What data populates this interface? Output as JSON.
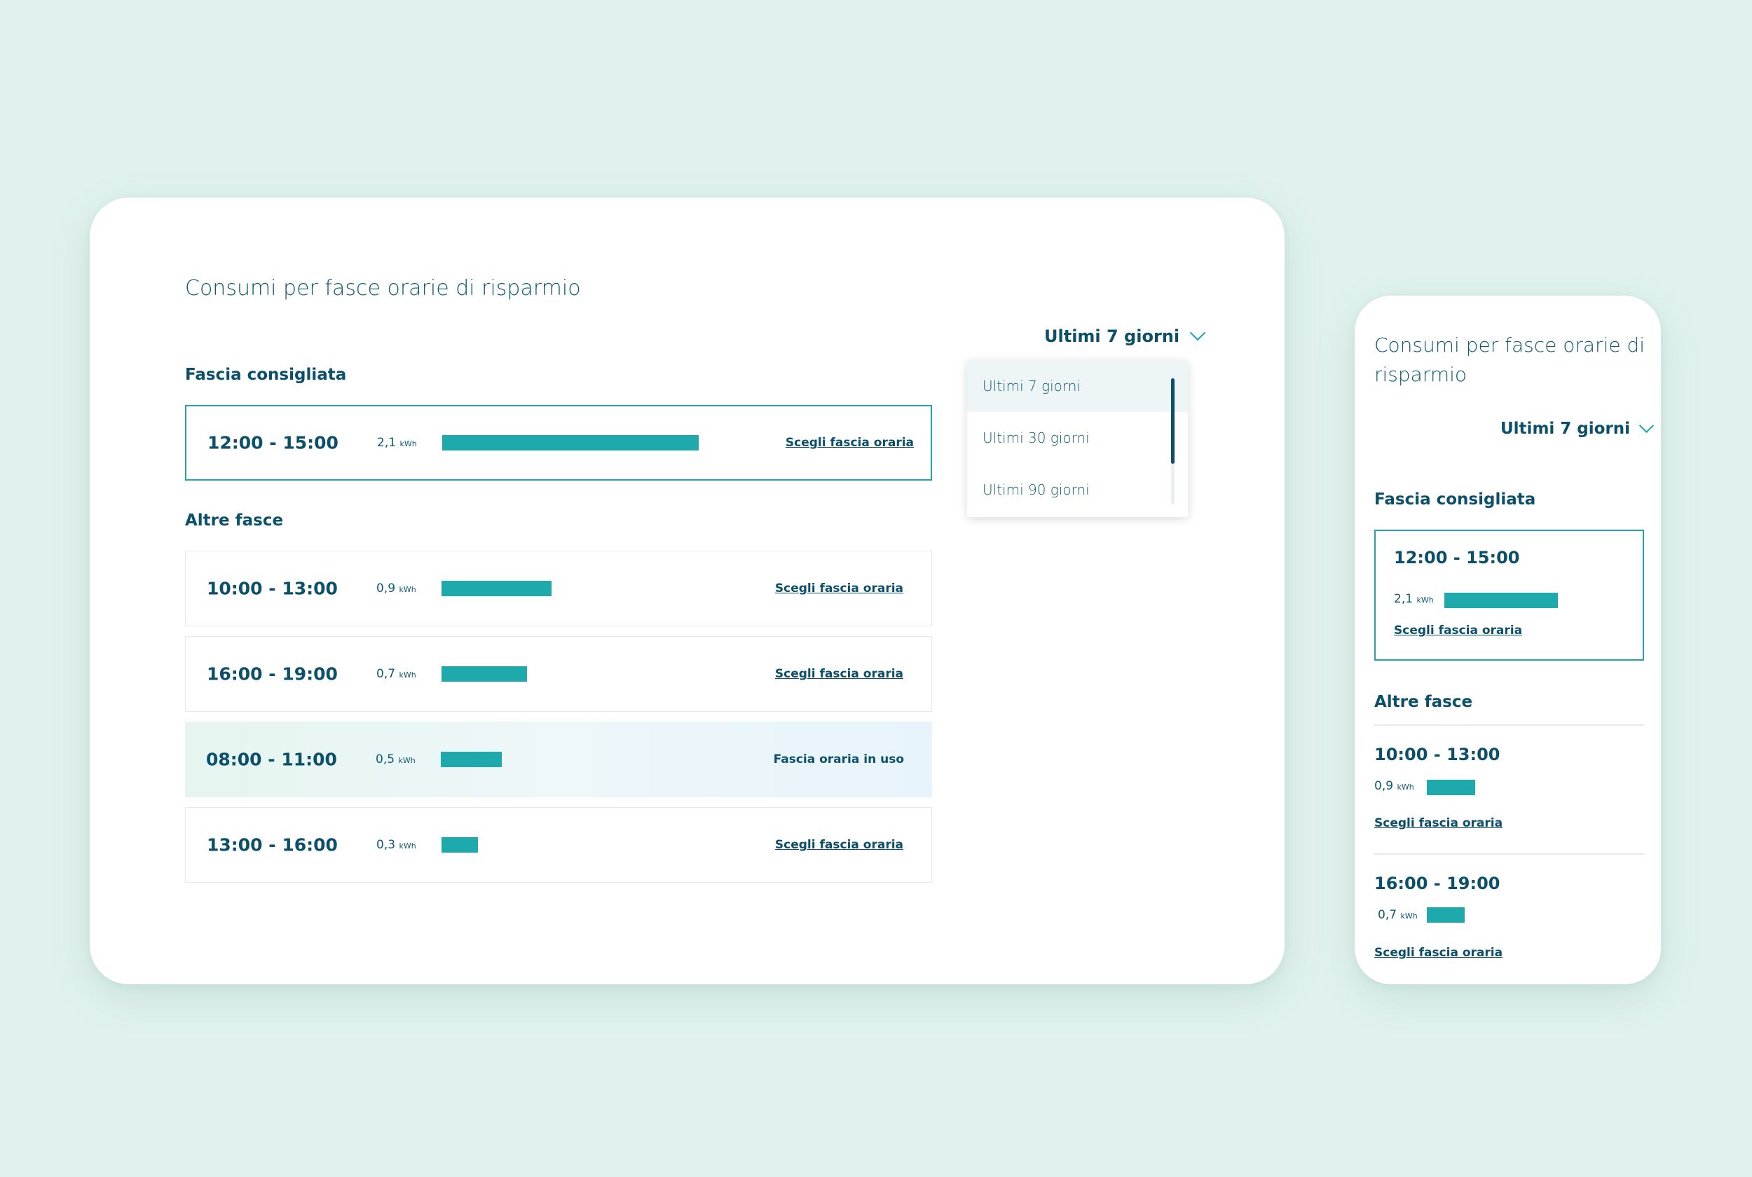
{
  "desktop": {
    "title": "Consumi per fasce orarie di risparmio",
    "period_selected": "Ultimi 7 giorni",
    "period_options": [
      "Ultimi 7 giorni",
      "Ultimi 30 giorni",
      "Ultimi 90 giorni"
    ],
    "recommended_heading": "Fascia consigliata",
    "others_heading": "Altre fasce",
    "recommended": {
      "time": "12:00 - 15:00",
      "value": "2,1",
      "unit": "kWh",
      "kwh": 2.1,
      "action": "Scegli fascia oraria"
    },
    "others": [
      {
        "time": "10:00 - 13:00",
        "value": "0,9",
        "unit": "kWh",
        "kwh": 0.9,
        "action": "Scegli fascia oraria"
      },
      {
        "time": "16:00 - 19:00",
        "value": "0,7",
        "unit": "kWh",
        "kwh": 0.7,
        "action": "Scegli fascia oraria"
      },
      {
        "time": "08:00 - 11:00",
        "value": "0,5",
        "unit": "kWh",
        "kwh": 0.5,
        "action": "Fascia oraria in uso"
      },
      {
        "time": "13:00 - 16:00",
        "value": "0,3",
        "unit": "kWh",
        "kwh": 0.3,
        "action": "Scegli fascia oraria"
      }
    ]
  },
  "mobile": {
    "title_line1": "Consumi per fasce orarie di",
    "title_line2": "risparmio",
    "period_selected": "Ultimi 7 giorni",
    "recommended_heading": "Fascia consigliata",
    "others_heading": "Altre fasce",
    "recommended": {
      "time": "12:00 - 15:00",
      "value": "2,1",
      "unit": "kWh",
      "kwh": 2.1,
      "action": "Scegli fascia oraria"
    },
    "others": [
      {
        "time": "10:00 - 13:00",
        "value": "0,9",
        "unit": "kWh",
        "kwh": 0.9,
        "action": "Scegli fascia oraria"
      },
      {
        "time": "16:00 - 19:00",
        "value": "0,7",
        "unit": "kWh",
        "kwh": 0.7,
        "action": "Scegli fascia oraria"
      }
    ]
  },
  "colors": {
    "background": "#e1f2ee",
    "accent": "#1ea9ad",
    "text": "#0b4f6a",
    "card": "#ffffff"
  }
}
